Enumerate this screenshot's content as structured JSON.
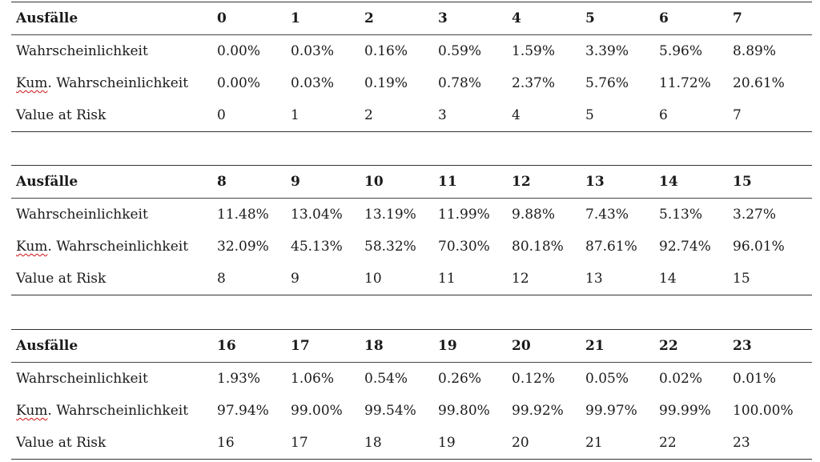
{
  "row_labels": {
    "header": "Ausfälle",
    "prob": "Wahrscheinlichkeit",
    "cum_prefix": "Kum",
    "cum_suffix": ". Wahrscheinlichkeit",
    "var": "Value at Risk"
  },
  "tables": [
    {
      "defaults": [
        "0",
        "1",
        "2",
        "3",
        "4",
        "5",
        "6",
        "7"
      ],
      "prob": [
        "0.00%",
        "0.03%",
        "0.16%",
        "0.59%",
        "1.59%",
        "3.39%",
        "5.96%",
        "8.89%"
      ],
      "cum": [
        "0.00%",
        "0.03%",
        "0.19%",
        "0.78%",
        "2.37%",
        "5.76%",
        "11.72%",
        "20.61%"
      ],
      "var": [
        "0",
        "1",
        "2",
        "3",
        "4",
        "5",
        "6",
        "7"
      ]
    },
    {
      "defaults": [
        "8",
        "9",
        "10",
        "11",
        "12",
        "13",
        "14",
        "15"
      ],
      "prob": [
        "11.48%",
        "13.04%",
        "13.19%",
        "11.99%",
        "9.88%",
        "7.43%",
        "5.13%",
        "3.27%"
      ],
      "cum": [
        "32.09%",
        "45.13%",
        "58.32%",
        "70.30%",
        "80.18%",
        "87.61%",
        "92.74%",
        "96.01%"
      ],
      "var": [
        "8",
        "9",
        "10",
        "11",
        "12",
        "13",
        "14",
        "15"
      ]
    },
    {
      "defaults": [
        "16",
        "17",
        "18",
        "19",
        "20",
        "21",
        "22",
        "23"
      ],
      "prob": [
        "1.93%",
        "1.06%",
        "0.54%",
        "0.26%",
        "0.12%",
        "0.05%",
        "0.02%",
        "0.01%"
      ],
      "cum": [
        "97.94%",
        "99.00%",
        "99.54%",
        "99.80%",
        "99.92%",
        "99.97%",
        "99.99%",
        "100.00%"
      ],
      "var": [
        "16",
        "17",
        "18",
        "19",
        "20",
        "21",
        "22",
        "23"
      ]
    }
  ]
}
